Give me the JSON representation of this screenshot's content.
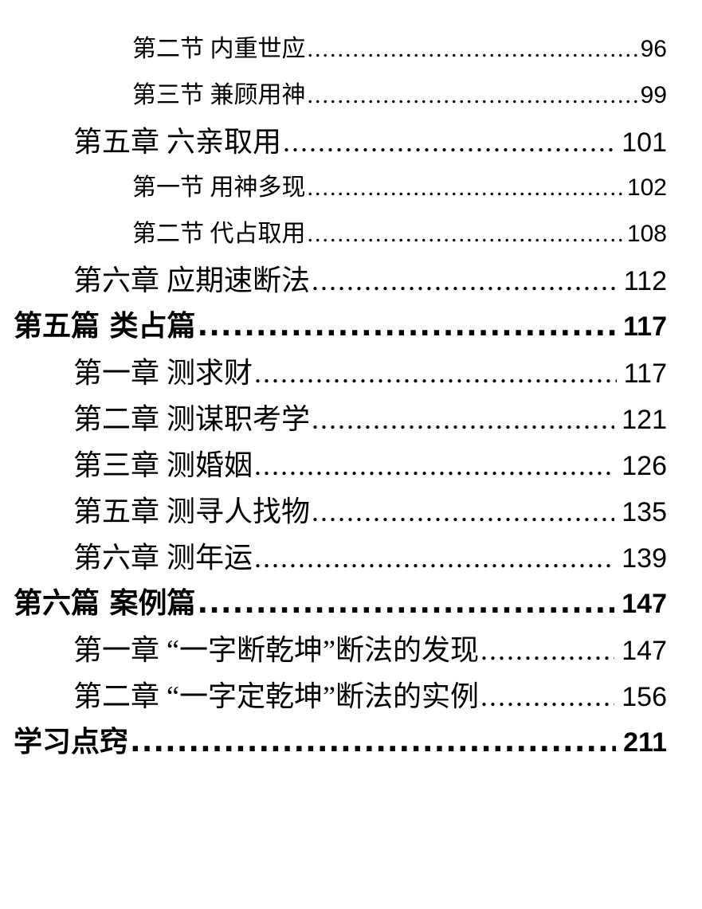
{
  "page": {
    "background_color": "#ffffff",
    "text_color": "#000000"
  },
  "toc": {
    "entries": [
      {
        "level": "section",
        "label": "第二节 内重世应",
        "page": "96"
      },
      {
        "level": "section",
        "label": "第三节 兼顾用神",
        "page": "99"
      },
      {
        "level": "chapter",
        "label": "第五章 六亲取用",
        "page": "101"
      },
      {
        "level": "section",
        "label": "第一节 用神多现",
        "page": "102"
      },
      {
        "level": "section",
        "label": "第二节 代占取用",
        "page": "108"
      },
      {
        "level": "chapter",
        "label": "第六章 应期速断法",
        "page": "112"
      },
      {
        "level": "part",
        "label": "第五篇 类占篇",
        "page": "117"
      },
      {
        "level": "chapter",
        "label": "第一章 测求财",
        "page": "117"
      },
      {
        "level": "chapter",
        "label": "第二章 测谋职考学",
        "page": "121"
      },
      {
        "level": "chapter",
        "label": "第三章 测婚姻",
        "page": "126"
      },
      {
        "level": "chapter",
        "label": "第五章 测寻人找物",
        "page": "135"
      },
      {
        "level": "chapter",
        "label": "第六章 测年运",
        "page": "139"
      },
      {
        "level": "part",
        "label": "第六篇 案例篇",
        "page": "147"
      },
      {
        "level": "chapter",
        "label": "第一章 “一字断乾坤”断法的发现",
        "page": "147"
      },
      {
        "level": "chapter",
        "label": "第二章 “一字定乾坤”断法的实例",
        "page": "156"
      },
      {
        "level": "part",
        "label": "学习点窍",
        "page": "211"
      }
    ]
  }
}
